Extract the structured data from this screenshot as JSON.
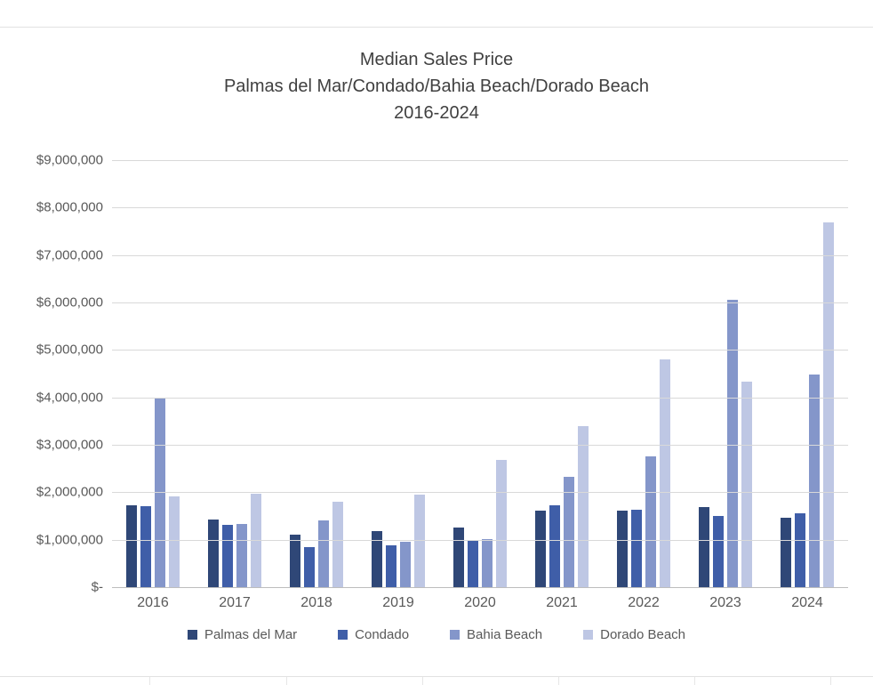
{
  "chart_data": {
    "type": "bar",
    "title_lines": [
      "Median Sales Price",
      "Palmas del Mar/Condado/Bahia Beach/Dorado Beach",
      "2016-2024"
    ],
    "categories": [
      "2016",
      "2017",
      "2018",
      "2019",
      "2020",
      "2021",
      "2022",
      "2023",
      "2024"
    ],
    "series": [
      {
        "name": "Palmas del Mar",
        "color": "#2F4777",
        "values": [
          1730000,
          1430000,
          1110000,
          1180000,
          1260000,
          1610000,
          1610000,
          1690000,
          1460000
        ]
      },
      {
        "name": "Condado",
        "color": "#3F5EA8",
        "values": [
          1710000,
          1310000,
          840000,
          880000,
          990000,
          1730000,
          1630000,
          1500000,
          1560000
        ]
      },
      {
        "name": "Bahia Beach",
        "color": "#8496CA",
        "values": [
          3980000,
          1330000,
          1410000,
          960000,
          1010000,
          2330000,
          2760000,
          6060000,
          4480000
        ]
      },
      {
        "name": "Dorado Beach",
        "color": "#BEC7E4",
        "values": [
          1910000,
          1970000,
          1800000,
          1950000,
          2680000,
          3400000,
          4800000,
          4330000,
          7690000
        ]
      }
    ],
    "ylim": [
      0,
      9000000
    ],
    "yticks": [
      {
        "label": "$9,000,000",
        "value": 9000000
      },
      {
        "label": "$8,000,000",
        "value": 8000000
      },
      {
        "label": "$7,000,000",
        "value": 7000000
      },
      {
        "label": "$6,000,000",
        "value": 6000000
      },
      {
        "label": "$5,000,000",
        "value": 5000000
      },
      {
        "label": "$4,000,000",
        "value": 4000000
      },
      {
        "label": "$3,000,000",
        "value": 3000000
      },
      {
        "label": "$2,000,000",
        "value": 2000000
      },
      {
        "label": "$1,000,000",
        "value": 1000000
      },
      {
        "label": "$-",
        "value": 0
      }
    ],
    "grid": true,
    "legend_position": "bottom"
  }
}
